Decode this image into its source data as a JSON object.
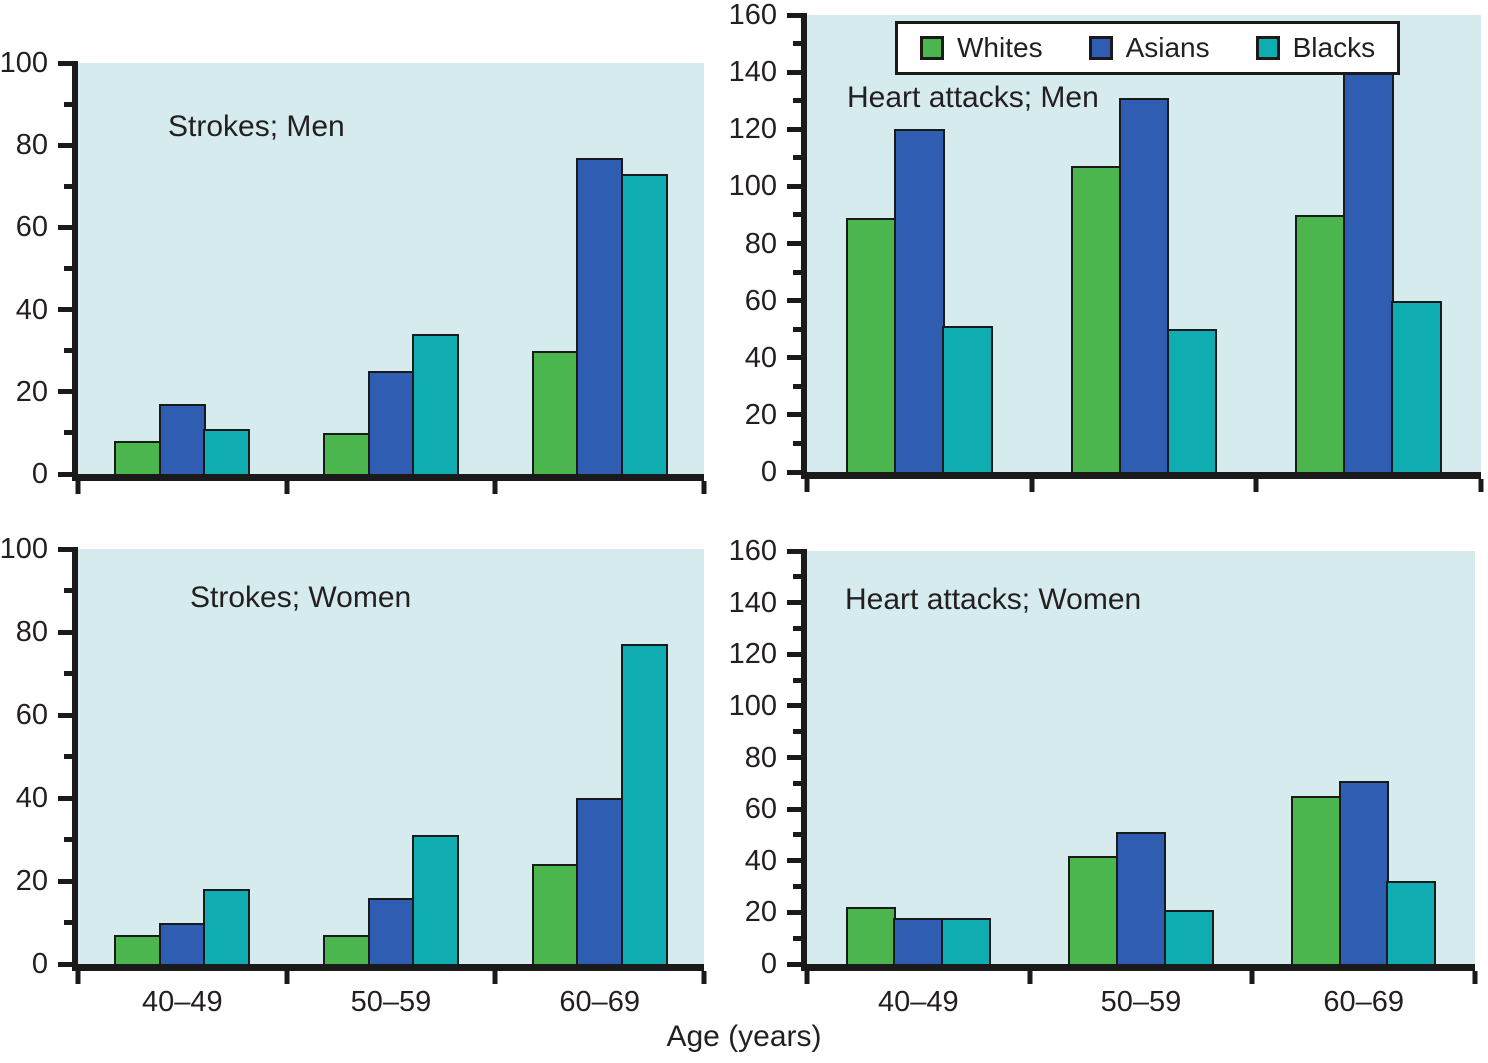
{
  "figure": {
    "xlabel": "Age (years)",
    "categories": [
      "40–49",
      "50–59",
      "60–69"
    ],
    "legend": {
      "position": "top-center, inside Heart attacks; Men panel",
      "items": [
        {
          "label": "Whites",
          "color": "#4cb64e"
        },
        {
          "label": "Asians",
          "color": "#2e5db1"
        },
        {
          "label": "Blacks",
          "color": "#0fadb2"
        }
      ]
    },
    "colors": {
      "plot_background": "#d6ebee",
      "axis": "#1a1a1a",
      "legend_background": "#ffffff",
      "text": "#231f20"
    }
  },
  "chart_data": [
    {
      "type": "bar",
      "title": "Strokes; Men",
      "categories": [
        "40–49",
        "50–59",
        "60–69"
      ],
      "series": [
        {
          "name": "Whites",
          "values": [
            8,
            10,
            30
          ]
        },
        {
          "name": "Asians",
          "values": [
            17,
            25,
            77
          ]
        },
        {
          "name": "Blacks",
          "values": [
            11,
            34,
            73
          ]
        }
      ],
      "ylim": [
        0,
        100
      ],
      "ytick_major": 20,
      "ytick_minor": 10,
      "grid": false,
      "x_tick_labels_visible": false
    },
    {
      "type": "bar",
      "title": "Heart attacks; Men",
      "categories": [
        "40–49",
        "50–59",
        "60–69"
      ],
      "series": [
        {
          "name": "Whites",
          "values": [
            89,
            107,
            90
          ]
        },
        {
          "name": "Asians",
          "values": [
            120,
            131,
            144
          ]
        },
        {
          "name": "Blacks",
          "values": [
            51,
            50,
            60
          ]
        }
      ],
      "ylim": [
        0,
        160
      ],
      "ytick_major": 20,
      "ytick_minor": 10,
      "grid": false,
      "x_tick_labels_visible": false
    },
    {
      "type": "bar",
      "title": "Strokes; Women",
      "categories": [
        "40–49",
        "50–59",
        "60–69"
      ],
      "series": [
        {
          "name": "Whites",
          "values": [
            7,
            7,
            24
          ]
        },
        {
          "name": "Asians",
          "values": [
            10,
            16,
            40
          ]
        },
        {
          "name": "Blacks",
          "values": [
            18,
            31,
            77
          ]
        }
      ],
      "ylim": [
        0,
        100
      ],
      "ytick_major": 20,
      "ytick_minor": 10,
      "grid": false,
      "x_tick_labels_visible": true
    },
    {
      "type": "bar",
      "title": "Heart attacks; Women",
      "categories": [
        "40–49",
        "50–59",
        "60–69"
      ],
      "series": [
        {
          "name": "Whites",
          "values": [
            22,
            42,
            65
          ]
        },
        {
          "name": "Asians",
          "values": [
            18,
            51,
            71
          ]
        },
        {
          "name": "Blacks",
          "values": [
            18,
            21,
            32
          ]
        }
      ],
      "ylim": [
        0,
        160
      ],
      "ytick_major": 20,
      "ytick_minor": 10,
      "grid": false,
      "x_tick_labels_visible": true
    }
  ]
}
